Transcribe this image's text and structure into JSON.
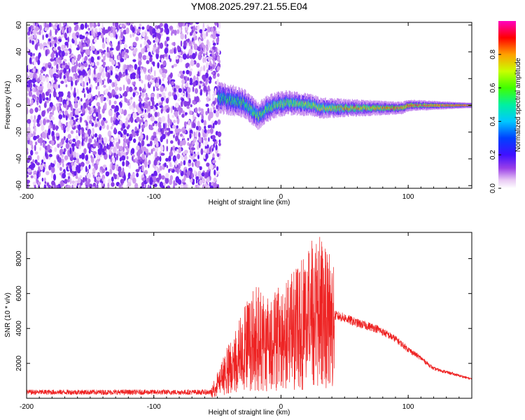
{
  "title": "YM08.2025.297.21.55.E04",
  "chart_data": [
    {
      "type": "heatmap",
      "name": "spectrogram",
      "xlabel": "Height of straight line (km)",
      "ylabel": "Frequency (Hz)",
      "xlim": [
        -200,
        150
      ],
      "ylim": [
        -62,
        62
      ],
      "xticks": [
        -200,
        -100,
        0,
        100
      ],
      "xtick_labels": [
        "-200",
        "-100",
        "0",
        "100"
      ],
      "yticks": [
        -60,
        -40,
        -20,
        0,
        20,
        40,
        60
      ],
      "ytick_labels": [
        "-60",
        "-40",
        "-20",
        "0",
        "20",
        "40",
        "60"
      ],
      "noise_region_km": [
        -200,
        -48
      ],
      "signal_track": [
        {
          "x": -50,
          "y": 6
        },
        {
          "x": -40,
          "y": 4
        },
        {
          "x": -30,
          "y": 2
        },
        {
          "x": -25,
          "y": -2
        },
        {
          "x": -18,
          "y": -8
        },
        {
          "x": -12,
          "y": -3
        },
        {
          "x": -5,
          "y": 0
        },
        {
          "x": 5,
          "y": 2
        },
        {
          "x": 15,
          "y": 1
        },
        {
          "x": 25,
          "y": 0
        },
        {
          "x": 30,
          "y": -2
        },
        {
          "x": 45,
          "y": -2
        },
        {
          "x": 60,
          "y": -2
        },
        {
          "x": 95,
          "y": -2
        },
        {
          "x": 100,
          "y": 0
        },
        {
          "x": 140,
          "y": 0
        },
        {
          "x": 150,
          "y": 0
        }
      ],
      "colorbar": {
        "label": "Normalized spectral amplitude",
        "range": [
          0,
          1
        ],
        "ticks": [
          0.0,
          0.2,
          0.4,
          0.6,
          0.8
        ],
        "tick_labels": [
          "0.0",
          "0.2",
          "0.4",
          "0.6",
          "0.8"
        ]
      }
    },
    {
      "type": "line",
      "name": "snr",
      "xlabel": "Height of straight line (km)",
      "ylabel": "SNR (10 * v/v)",
      "xlim": [
        -200,
        150
      ],
      "ylim": [
        0,
        9500
      ],
      "xticks": [
        -200,
        -100,
        0,
        100
      ],
      "xtick_labels": [
        "-200",
        "-100",
        "0",
        "100"
      ],
      "yticks": [
        2000,
        4000,
        6000,
        8000
      ],
      "ytick_labels": [
        "2000",
        "4000",
        "6000",
        "8000"
      ],
      "color": "#ee2222",
      "envelope": [
        {
          "x": -200,
          "y": 350
        },
        {
          "x": -55,
          "y": 350
        },
        {
          "x": -40,
          "y": 2000
        },
        {
          "x": -30,
          "y": 3000
        },
        {
          "x": -20,
          "y": 4000
        },
        {
          "x": -10,
          "y": 3500
        },
        {
          "x": 0,
          "y": 3800
        },
        {
          "x": 10,
          "y": 4300
        },
        {
          "x": 20,
          "y": 5000
        },
        {
          "x": 30,
          "y": 5500
        },
        {
          "x": 40,
          "y": 4800
        },
        {
          "x": 50,
          "y": 4600
        },
        {
          "x": 60,
          "y": 4300
        },
        {
          "x": 75,
          "y": 4000
        },
        {
          "x": 90,
          "y": 3400
        },
        {
          "x": 100,
          "y": 2800
        },
        {
          "x": 110,
          "y": 2300
        },
        {
          "x": 120,
          "y": 1700
        },
        {
          "x": 135,
          "y": 1400
        },
        {
          "x": 150,
          "y": 1100
        }
      ],
      "peak": {
        "x": 28,
        "y": 9500
      }
    }
  ]
}
